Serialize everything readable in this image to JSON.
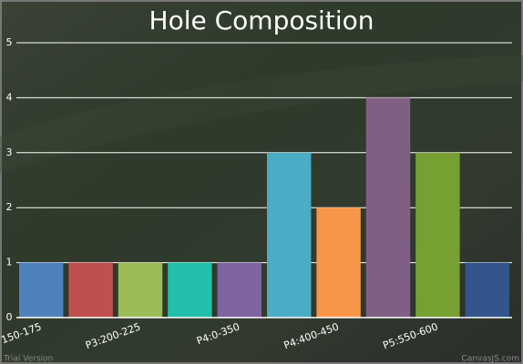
{
  "chart_data": {
    "type": "bar",
    "title": "Hole Composition",
    "categories": [
      "150-175",
      null,
      "P3:200-225",
      null,
      "P4:0-350",
      null,
      "P4:400-450",
      null,
      "P5:550-600",
      null
    ],
    "values": [
      1,
      1,
      1,
      1,
      1,
      3,
      2,
      4,
      3,
      1
    ],
    "colors": [
      "#4f81bc",
      "#c0504e",
      "#9bbb58",
      "#23bfaa",
      "#8064a1",
      "#4aacc5",
      "#f79647",
      "#7f6084",
      "#77a033",
      "#33558b"
    ],
    "ylim": [
      0,
      5
    ],
    "yticks": [
      0,
      1,
      2,
      3,
      4,
      5
    ],
    "grid": true,
    "watermark": [
      "Trial Version",
      "CanvasJS.com"
    ]
  }
}
